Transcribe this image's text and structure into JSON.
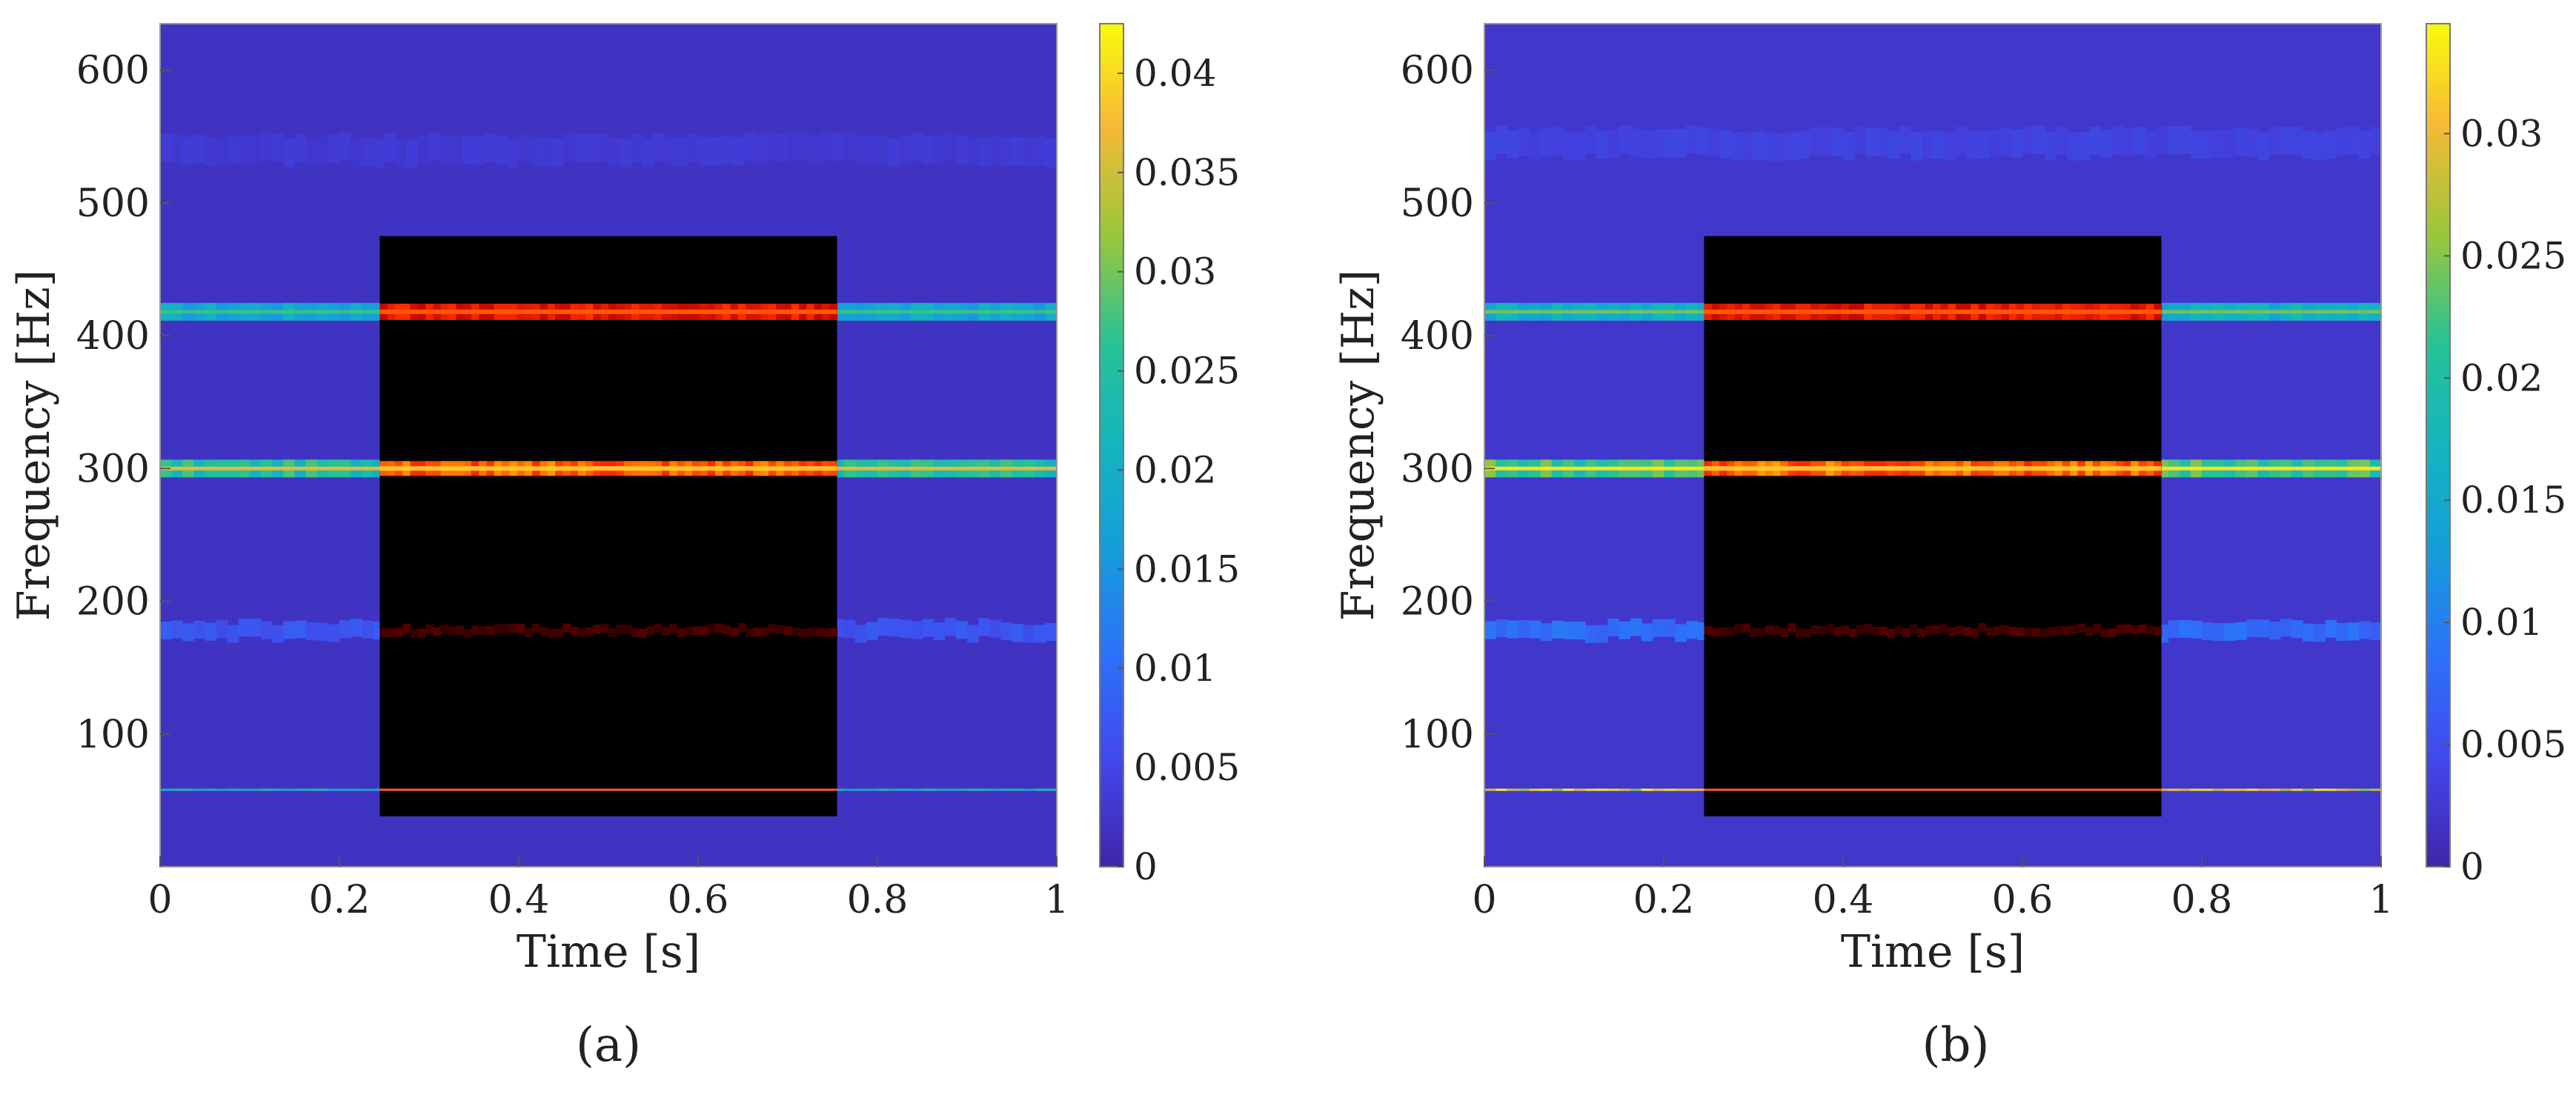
{
  "chart_data": [
    {
      "type": "heatmap",
      "panel_label": "(a)",
      "xlabel": "Time [s]",
      "ylabel": "Frequency [Hz]",
      "xlim": [
        0,
        1
      ],
      "ylim": [
        0,
        635
      ],
      "xticks": [
        0,
        0.2,
        0.4,
        0.6,
        0.8,
        1
      ],
      "xtick_labels": [
        "0",
        "0.2",
        "0.4",
        "0.6",
        "0.8",
        "1"
      ],
      "yticks": [
        100,
        200,
        300,
        400,
        500,
        600
      ],
      "ytick_labels": [
        "100",
        "200",
        "300",
        "400",
        "500",
        "600"
      ],
      "colorbar": {
        "range": [
          0,
          0.0425
        ],
        "ticks": [
          0,
          0.005,
          0.01,
          0.015,
          0.02,
          0.025,
          0.03,
          0.035,
          0.04
        ],
        "tick_labels": [
          "0",
          "0.005",
          "0.01",
          "0.015",
          "0.02",
          "0.025",
          "0.03",
          "0.035",
          "0.04"
        ]
      },
      "masked_region": {
        "t_start": 0.245,
        "t_end": 0.755,
        "f_low": 38,
        "f_high": 475,
        "colormap": "hot (black-red-yellow)"
      },
      "bands": [
        {
          "frequency_hz": 418,
          "level": 0.018
        },
        {
          "frequency_hz": 300,
          "level": 0.024
        },
        {
          "frequency_hz": 178,
          "level": 0.007
        },
        {
          "frequency_hz": 58,
          "level": 0.02
        },
        {
          "frequency_hz": 540,
          "level": 0.004
        }
      ],
      "background_level": 0.002
    },
    {
      "type": "heatmap",
      "panel_label": "(b)",
      "xlabel": "Time [s]",
      "ylabel": "Frequency [Hz]",
      "xlim": [
        0,
        1
      ],
      "ylim": [
        0,
        635
      ],
      "xticks": [
        0,
        0.2,
        0.4,
        0.6,
        0.8,
        1
      ],
      "xtick_labels": [
        "0",
        "0.2",
        "0.4",
        "0.6",
        "0.8",
        "1"
      ],
      "yticks": [
        100,
        200,
        300,
        400,
        500,
        600
      ],
      "ytick_labels": [
        "100",
        "200",
        "300",
        "400",
        "500",
        "600"
      ],
      "colorbar": {
        "range": [
          0,
          0.0345
        ],
        "ticks": [
          0,
          0.005,
          0.01,
          0.015,
          0.02,
          0.025,
          0.03
        ],
        "tick_labels": [
          "0",
          "0.005",
          "0.01",
          "0.015",
          "0.02",
          "0.025",
          "0.03"
        ]
      },
      "masked_region": {
        "t_start": 0.245,
        "t_end": 0.755,
        "f_low": 38,
        "f_high": 475,
        "colormap": "hot (black-red-yellow)"
      },
      "bands": [
        {
          "frequency_hz": 418,
          "level": 0.016
        },
        {
          "frequency_hz": 300,
          "level": 0.022
        },
        {
          "frequency_hz": 178,
          "level": 0.008
        },
        {
          "frequency_hz": 58,
          "level": 0.03
        },
        {
          "frequency_hz": 545,
          "level": 0.0045
        }
      ],
      "background_level": 0.0022
    }
  ]
}
